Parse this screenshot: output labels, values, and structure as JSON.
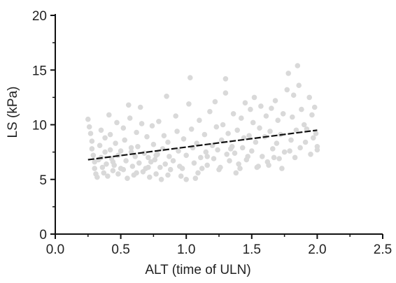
{
  "chart_data": {
    "type": "scatter",
    "title": "",
    "xlabel": "ALT (time of ULN)",
    "ylabel": "LS (kPa)",
    "xlim": [
      0,
      2.5
    ],
    "ylim": [
      0,
      20
    ],
    "x_ticks": [
      0.0,
      0.5,
      1.0,
      1.5,
      2.0,
      2.5
    ],
    "x_tick_labels": [
      "0.0",
      "0.5",
      "1.0",
      "1.5",
      "2.0",
      "2.5"
    ],
    "y_ticks": [
      0,
      5,
      10,
      15,
      20
    ],
    "y_tick_labels": [
      "0",
      "5",
      "10",
      "15",
      "20"
    ],
    "grid": false,
    "point_color": "#d9d9d9",
    "line_color": "#111111",
    "series": [
      {
        "type": "scatter",
        "points": [
          [
            0.25,
            10.5
          ],
          [
            0.26,
            9.8
          ],
          [
            0.27,
            9.2
          ],
          [
            0.28,
            8.5
          ],
          [
            0.28,
            7.8
          ],
          [
            0.29,
            7.2
          ],
          [
            0.3,
            6.6
          ],
          [
            0.3,
            6.0
          ],
          [
            0.31,
            5.5
          ],
          [
            0.32,
            5.2
          ],
          [
            0.33,
            6.8
          ],
          [
            0.34,
            8.1
          ],
          [
            0.35,
            9.5
          ],
          [
            0.35,
            7.0
          ],
          [
            0.36,
            6.1
          ],
          [
            0.37,
            5.6
          ],
          [
            0.38,
            7.5
          ],
          [
            0.38,
            8.8
          ],
          [
            0.39,
            6.4
          ],
          [
            0.4,
            5.3
          ],
          [
            0.41,
            10.9
          ],
          [
            0.42,
            9.1
          ],
          [
            0.42,
            7.7
          ],
          [
            0.43,
            6.9
          ],
          [
            0.44,
            5.8
          ],
          [
            0.45,
            6.3
          ],
          [
            0.46,
            8.3
          ],
          [
            0.47,
            10.2
          ],
          [
            0.48,
            7.2
          ],
          [
            0.48,
            5.5
          ],
          [
            0.5,
            6.0
          ],
          [
            0.5,
            7.6
          ],
          [
            0.52,
            9.7
          ],
          [
            0.53,
            8.6
          ],
          [
            0.54,
            6.7
          ],
          [
            0.55,
            5.1
          ],
          [
            0.56,
            11.8
          ],
          [
            0.57,
            10.6
          ],
          [
            0.58,
            7.9
          ],
          [
            0.59,
            6.2
          ],
          [
            0.6,
            5.4
          ],
          [
            0.61,
            7.1
          ],
          [
            0.62,
            9.3
          ],
          [
            0.63,
            8.0
          ],
          [
            0.64,
            6.5
          ],
          [
            0.65,
            11.6
          ],
          [
            0.66,
            10.1
          ],
          [
            0.67,
            5.7
          ],
          [
            0.68,
            7.4
          ],
          [
            0.69,
            6.0
          ],
          [
            0.7,
            8.9
          ],
          [
            0.71,
            7.0
          ],
          [
            0.72,
            5.2
          ],
          [
            0.73,
            6.6
          ],
          [
            0.74,
            9.9
          ],
          [
            0.75,
            8.2
          ],
          [
            0.76,
            6.8
          ],
          [
            0.77,
            5.5
          ],
          [
            0.78,
            7.3
          ],
          [
            0.79,
            10.3
          ],
          [
            0.8,
            6.1
          ],
          [
            0.81,
            5.0
          ],
          [
            0.82,
            7.8
          ],
          [
            0.83,
            9.0
          ],
          [
            0.84,
            6.4
          ],
          [
            0.85,
            12.6
          ],
          [
            0.86,
            8.4
          ],
          [
            0.87,
            7.1
          ],
          [
            0.88,
            5.9
          ],
          [
            0.9,
            6.7
          ],
          [
            0.92,
            10.8
          ],
          [
            0.93,
            9.4
          ],
          [
            0.94,
            7.6
          ],
          [
            0.95,
            6.2
          ],
          [
            0.96,
            5.3
          ],
          [
            0.98,
            8.7
          ],
          [
            1.0,
            7.2
          ],
          [
            1.0,
            5.0
          ],
          [
            1.02,
            11.9
          ],
          [
            1.03,
            14.3
          ],
          [
            1.04,
            9.6
          ],
          [
            1.05,
            7.9
          ],
          [
            1.06,
            6.5
          ],
          [
            1.07,
            5.1
          ],
          [
            1.08,
            8.3
          ],
          [
            1.1,
            10.4
          ],
          [
            1.11,
            7.0
          ],
          [
            1.12,
            6.0
          ],
          [
            1.14,
            9.1
          ],
          [
            1.15,
            7.5
          ],
          [
            1.16,
            6.3
          ],
          [
            1.18,
            11.2
          ],
          [
            1.2,
            8.1
          ],
          [
            1.21,
            6.9
          ],
          [
            1.22,
            12.1
          ],
          [
            1.23,
            9.8
          ],
          [
            1.24,
            7.7
          ],
          [
            1.26,
            6.1
          ],
          [
            1.27,
            8.6
          ],
          [
            1.28,
            10.0
          ],
          [
            1.3,
            14.2
          ],
          [
            1.3,
            12.9
          ],
          [
            1.31,
            7.3
          ],
          [
            1.32,
            9.2
          ],
          [
            1.33,
            6.7
          ],
          [
            1.35,
            8.0
          ],
          [
            1.36,
            11.0
          ],
          [
            1.37,
            7.4
          ],
          [
            1.38,
            5.6
          ],
          [
            1.39,
            9.5
          ],
          [
            1.4,
            6.4
          ],
          [
            1.42,
            10.6
          ],
          [
            1.43,
            7.9
          ],
          [
            1.44,
            8.8
          ],
          [
            1.45,
            12.0
          ],
          [
            1.46,
            6.8
          ],
          [
            1.48,
            9.0
          ],
          [
            1.49,
            11.4
          ],
          [
            1.5,
            7.6
          ],
          [
            1.51,
            10.2
          ],
          [
            1.52,
            12.5
          ],
          [
            1.53,
            8.4
          ],
          [
            1.55,
            6.2
          ],
          [
            1.56,
            9.7
          ],
          [
            1.57,
            11.7
          ],
          [
            1.58,
            7.1
          ],
          [
            1.6,
            8.9
          ],
          [
            1.61,
            10.8
          ],
          [
            1.62,
            6.6
          ],
          [
            1.64,
            9.4
          ],
          [
            1.65,
            11.5
          ],
          [
            1.66,
            7.8
          ],
          [
            1.68,
            12.2
          ],
          [
            1.69,
            8.3
          ],
          [
            1.7,
            10.4
          ],
          [
            1.71,
            6.9
          ],
          [
            1.72,
            9.1
          ],
          [
            1.74,
            11.0
          ],
          [
            1.75,
            7.5
          ],
          [
            1.77,
            13.2
          ],
          [
            1.78,
            14.7
          ],
          [
            1.8,
            8.6
          ],
          [
            1.81,
            10.7
          ],
          [
            1.82,
            12.7
          ],
          [
            1.84,
            9.5
          ],
          [
            1.85,
            15.4
          ],
          [
            1.86,
            13.6
          ],
          [
            1.87,
            7.9
          ],
          [
            1.88,
            11.4
          ],
          [
            1.9,
            10.0
          ],
          [
            1.91,
            8.4
          ],
          [
            1.92,
            9.6
          ],
          [
            1.94,
            12.5
          ],
          [
            1.95,
            7.3
          ],
          [
            1.96,
            10.9
          ],
          [
            1.97,
            8.8
          ],
          [
            1.98,
            11.6
          ],
          [
            1.99,
            9.2
          ],
          [
            2.0,
            8.0
          ],
          [
            2.0,
            7.7
          ],
          [
            0.44,
            6.6
          ],
          [
            0.52,
            5.9
          ],
          [
            0.58,
            7.5
          ],
          [
            0.62,
            5.6
          ],
          [
            0.71,
            6.1
          ],
          [
            0.77,
            7.2
          ],
          [
            0.86,
            5.4
          ],
          [
            0.97,
            6.0
          ],
          [
            1.09,
            5.6
          ],
          [
            1.16,
            7.1
          ],
          [
            1.25,
            5.9
          ],
          [
            1.34,
            7.8
          ],
          [
            1.41,
            6.0
          ],
          [
            1.47,
            7.1
          ],
          [
            1.54,
            6.1
          ],
          [
            1.63,
            6.3
          ],
          [
            1.67,
            7.0
          ],
          [
            1.73,
            6.0
          ],
          [
            1.79,
            7.6
          ],
          [
            1.83,
            7.0
          ]
        ]
      },
      {
        "type": "line",
        "points": [
          [
            0.25,
            6.8
          ],
          [
            2.0,
            9.5
          ]
        ]
      }
    ]
  }
}
